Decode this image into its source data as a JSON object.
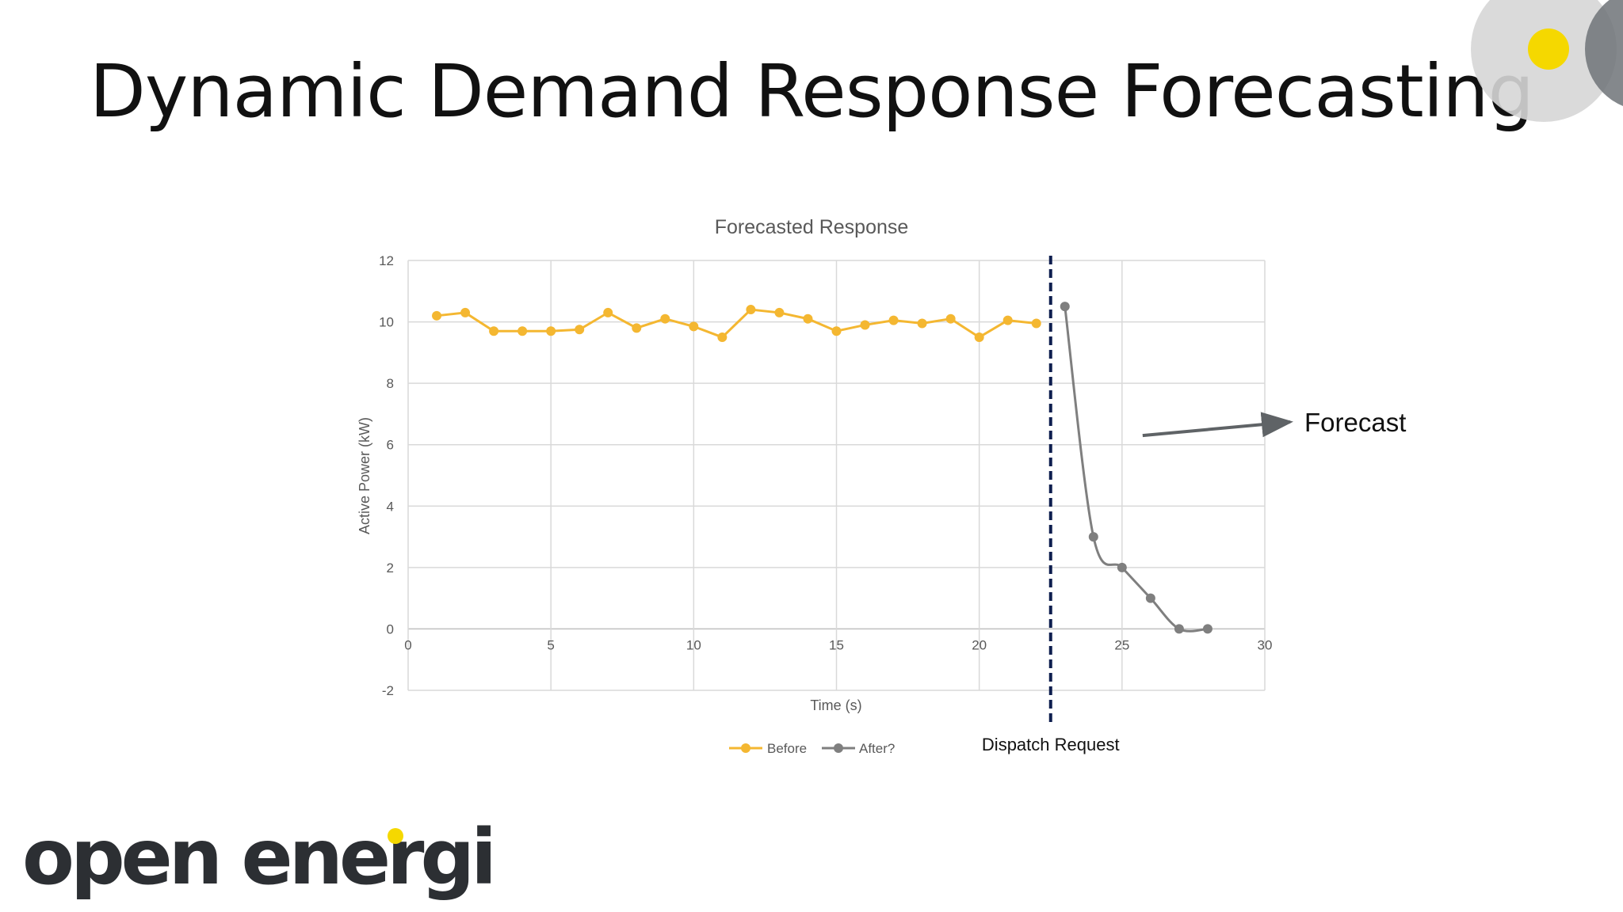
{
  "slide": {
    "title": "Dynamic Demand Response Forecasting",
    "logo_text": "open energi",
    "colors": {
      "accent_yellow": "#F5D800",
      "circle_gray": "#D6D6D6",
      "logo_dark": "#2C2F33"
    }
  },
  "chart_data": {
    "type": "line",
    "title": "Forecasted Response",
    "xlabel": "Time (s)",
    "ylabel": "Active Power (kW)",
    "xlim": [
      0,
      30
    ],
    "ylim": [
      -2,
      12
    ],
    "x_ticks": [
      "0",
      "5",
      "10",
      "15",
      "20",
      "25",
      "30"
    ],
    "y_ticks": [
      "-2",
      "0",
      "2",
      "4",
      "6",
      "8",
      "10",
      "12"
    ],
    "grid": true,
    "legend_position": "bottom-center",
    "series": [
      {
        "name": "Before",
        "color": "#F4B731",
        "smooth": false,
        "x": [
          1,
          2,
          3,
          4,
          5,
          6,
          7,
          8,
          9,
          10,
          11,
          12,
          13,
          14,
          15,
          16,
          17,
          18,
          19,
          20,
          21,
          22
        ],
        "y": [
          10.2,
          10.3,
          9.7,
          9.7,
          9.7,
          9.75,
          10.3,
          9.8,
          10.1,
          9.85,
          9.5,
          10.4,
          10.3,
          10.1,
          9.7,
          9.9,
          10.05,
          9.95,
          10.1,
          9.5,
          10.05,
          9.95
        ]
      },
      {
        "name": "After?",
        "color": "#7F7F7F",
        "smooth": true,
        "x": [
          23,
          24,
          25,
          26,
          27,
          28
        ],
        "y": [
          10.5,
          3.0,
          2.0,
          1.0,
          0.0,
          0.0
        ]
      }
    ],
    "annotations": [
      {
        "type": "vline",
        "x": 22.5,
        "label": "Dispatch Request",
        "color": "#0E1E4F",
        "style": "dashed"
      },
      {
        "type": "arrow",
        "label": "Forecast",
        "color": "#5F6366",
        "target_x": 25.5,
        "target_y": 6.3
      }
    ]
  }
}
